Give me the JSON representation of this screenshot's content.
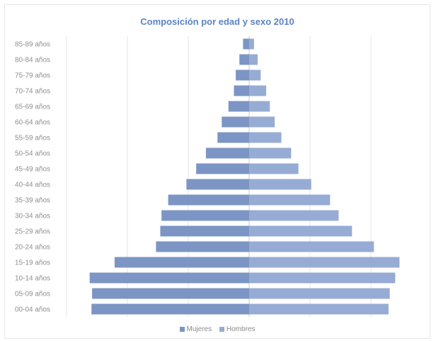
{
  "chart_data": {
    "type": "bar",
    "orientation": "horizontal-population-pyramid",
    "title": "Composición por edad y sexo 2010",
    "categories": [
      "85-89 años",
      "80-84 años",
      "75-79 años",
      "70-74 años",
      "65-69 años",
      "60-64 años",
      "55-59 años",
      "50-54 años",
      "45-49 años",
      "40-44 años",
      "35-39 años",
      "30-34 años",
      "25-29 años",
      "20-24 años",
      "15-19 años",
      "10-14 años",
      "05-09 años",
      "00-04 años"
    ],
    "series": [
      {
        "name": "Mujeres",
        "color": "#7c95c4",
        "values": [
          1.0,
          1.6,
          2.2,
          2.5,
          3.4,
          4.5,
          5.2,
          7.1,
          8.7,
          10.3,
          13.3,
          14.4,
          14.6,
          15.3,
          22.1,
          26.2,
          25.8,
          25.9
        ]
      },
      {
        "name": "Hombres",
        "color": "#97acd4",
        "values": [
          0.8,
          1.4,
          1.9,
          2.8,
          3.4,
          4.2,
          5.3,
          6.9,
          8.1,
          10.2,
          13.3,
          14.7,
          16.9,
          20.5,
          24.7,
          24.0,
          23.1,
          22.9
        ]
      }
    ],
    "xlim": [
      -30,
      30
    ],
    "grid": true,
    "legend": "bottom"
  }
}
